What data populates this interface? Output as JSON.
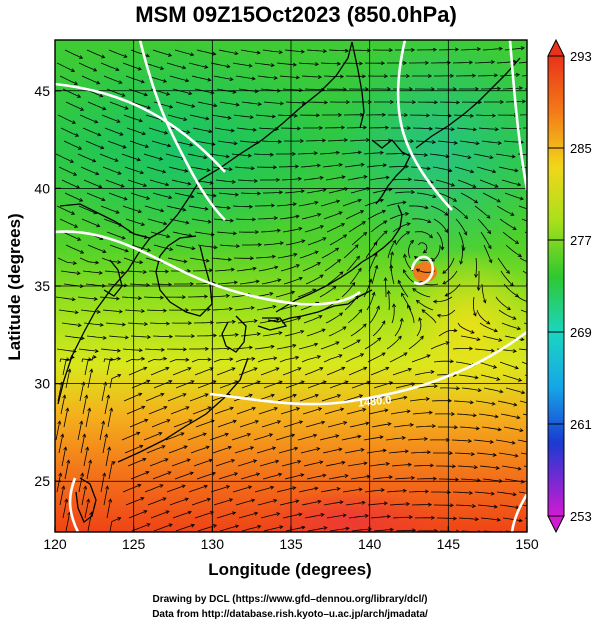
{
  "title": "MSM 09Z15Oct2023 (850.0hPa)",
  "x_axis": {
    "label": "Longitude (degrees)",
    "ticks": [
      "120",
      "125",
      "130",
      "135",
      "140",
      "145",
      "150"
    ]
  },
  "y_axis": {
    "label": "Latitude  (degrees)",
    "ticks": [
      "25",
      "30",
      "35",
      "40",
      "45"
    ]
  },
  "colorbar": {
    "ticks": [
      "293",
      "285",
      "277",
      "269",
      "261",
      "253"
    ]
  },
  "contour_label": "1480.0",
  "credits": {
    "line1": "Drawing by DCL (https://www.gfd–dennou.org/library/dcl/)",
    "line2": "Data from http://database.rish.kyoto–u.ac.jp/arch/jmadata/"
  },
  "chart_data": {
    "type": "heatmap",
    "title": "MSM 09Z15Oct2023 (850.0hPa)",
    "xlabel": "Longitude (degrees)",
    "ylabel": "Latitude  (degrees)",
    "xlim": [
      120,
      150
    ],
    "ylim": [
      22.4,
      47.6
    ],
    "x_ticks": [
      120,
      125,
      130,
      135,
      140,
      145,
      150
    ],
    "y_ticks": [
      25,
      30,
      35,
      40,
      45
    ],
    "colorbar": {
      "range": [
        253,
        293
      ],
      "ticks": [
        293,
        285,
        277,
        269,
        261,
        253
      ]
    },
    "grid": true,
    "overlays": [
      "streamlines",
      "coastlines",
      "geopotential height contours (white)"
    ],
    "contour_labels": [
      "1480.0"
    ],
    "low_center": {
      "lon": 143.3,
      "lat": 37.0
    }
  }
}
